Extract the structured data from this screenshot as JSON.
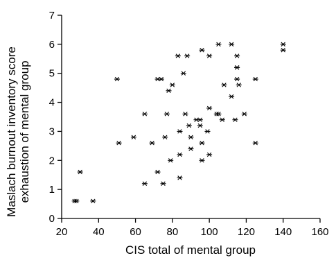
{
  "chart_data": {
    "type": "scatter",
    "title": "",
    "xlabel": "CIS total of mental group",
    "ylabel_lines": [
      "Maslach burnout inventory score",
      "exhaustion of mental group"
    ],
    "xlim": [
      20,
      160
    ],
    "ylim": [
      0,
      7
    ],
    "xticks": [
      20,
      40,
      60,
      80,
      100,
      120,
      140,
      160
    ],
    "yticks": [
      0,
      1,
      2,
      3,
      4,
      5,
      6,
      7
    ],
    "marker": "asterisk",
    "grid": false,
    "series": [
      {
        "points": [
          [
            27,
            0.6
          ],
          [
            28,
            0.6
          ],
          [
            30,
            1.6
          ],
          [
            37,
            0.6
          ],
          [
            50,
            4.8
          ],
          [
            51,
            2.6
          ],
          [
            59,
            2.8
          ],
          [
            65,
            3.6
          ],
          [
            65,
            1.2
          ],
          [
            69,
            2.6
          ],
          [
            72,
            4.8
          ],
          [
            72,
            1.6
          ],
          [
            74,
            4.8
          ],
          [
            75,
            1.2
          ],
          [
            76,
            2.8
          ],
          [
            77,
            3.6
          ],
          [
            78,
            4.4
          ],
          [
            79,
            2.0
          ],
          [
            80,
            4.6
          ],
          [
            83,
            5.6
          ],
          [
            84,
            3.0
          ],
          [
            84,
            2.2
          ],
          [
            84,
            1.4
          ],
          [
            86,
            5.0
          ],
          [
            87,
            3.6
          ],
          [
            88,
            5.6
          ],
          [
            89,
            3.2
          ],
          [
            90,
            2.8
          ],
          [
            90,
            2.4
          ],
          [
            93,
            3.4
          ],
          [
            95,
            3.2
          ],
          [
            95,
            3.4
          ],
          [
            96,
            5.8
          ],
          [
            96,
            2.6
          ],
          [
            96,
            2.0
          ],
          [
            99,
            3.0
          ],
          [
            100,
            5.6
          ],
          [
            100,
            3.8
          ],
          [
            100,
            2.2
          ],
          [
            104,
            3.6
          ],
          [
            105,
            3.6
          ],
          [
            105,
            6.0
          ],
          [
            107,
            3.4
          ],
          [
            108,
            4.6
          ],
          [
            112,
            4.2
          ],
          [
            112,
            6.0
          ],
          [
            114,
            3.4
          ],
          [
            115,
            5.6
          ],
          [
            115,
            5.2
          ],
          [
            115,
            5.2
          ],
          [
            115,
            4.8
          ],
          [
            116,
            4.6
          ],
          [
            119,
            3.6
          ],
          [
            125,
            4.8
          ],
          [
            125,
            2.6
          ],
          [
            140,
            6.0
          ],
          [
            140,
            5.8
          ]
        ]
      }
    ]
  }
}
